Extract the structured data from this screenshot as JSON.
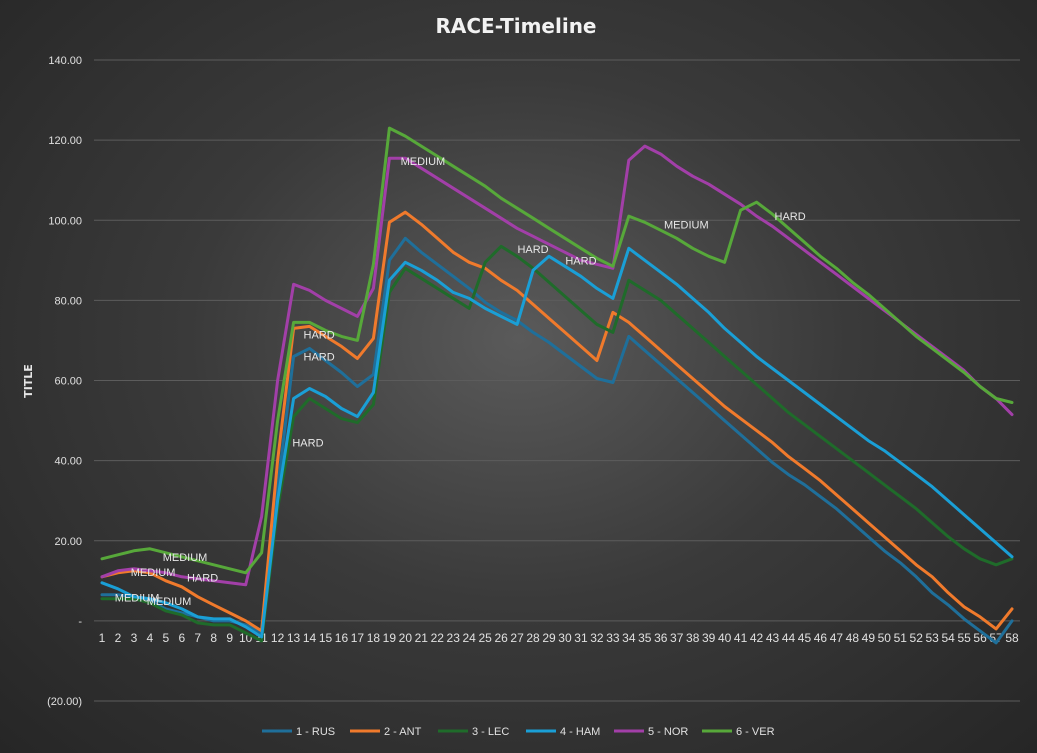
{
  "chart_data": {
    "type": "line",
    "title": "RACE-Timeline",
    "ylabel": "TITLE",
    "xlabel": "",
    "ylim": [
      -20,
      140
    ],
    "yticks": [
      {
        "value": 140,
        "label": "140.00"
      },
      {
        "value": 120,
        "label": "120.00"
      },
      {
        "value": 100,
        "label": "100.00"
      },
      {
        "value": 80,
        "label": "80.00"
      },
      {
        "value": 60,
        "label": "60.00"
      },
      {
        "value": 40,
        "label": "40.00"
      },
      {
        "value": 20,
        "label": "20.00"
      },
      {
        "value": 0,
        "label": "-"
      },
      {
        "value": -20,
        "label": "(20.00)"
      }
    ],
    "x": [
      1,
      2,
      3,
      4,
      5,
      6,
      7,
      8,
      9,
      10,
      11,
      12,
      13,
      14,
      15,
      16,
      17,
      18,
      19,
      20,
      21,
      22,
      23,
      24,
      25,
      26,
      27,
      28,
      29,
      30,
      31,
      32,
      33,
      34,
      35,
      36,
      37,
      38,
      39,
      40,
      41,
      42,
      43,
      44,
      45,
      46,
      47,
      48,
      49,
      50,
      51,
      52,
      53,
      54,
      55,
      56,
      57,
      58
    ],
    "grid": true,
    "legend_position": "bottom",
    "series": [
      {
        "name": "1 - RUS",
        "color": "#1f6f9a",
        "values": [
          6.5,
          6.5,
          6.0,
          5.0,
          3.0,
          2.0,
          1.0,
          0.0,
          0.0,
          -1.0,
          -3.0,
          33.0,
          66.0,
          68.0,
          65.0,
          62.0,
          58.5,
          61.5,
          90.0,
          95.5,
          92.0,
          89.0,
          86.0,
          83.0,
          79.5,
          77.0,
          75.0,
          72.0,
          69.5,
          66.5,
          63.5,
          60.5,
          59.5,
          71.0,
          67.5,
          64.0,
          60.5,
          57.0,
          53.5,
          50.0,
          46.5,
          43.0,
          39.5,
          36.5,
          34.0,
          31.0,
          28.0,
          24.5,
          21.0,
          17.5,
          14.5,
          11.0,
          7.0,
          4.0,
          0.5,
          -2.5,
          -5.5,
          0.0
        ]
      },
      {
        "name": "2 - ANT",
        "color": "#f07a2c",
        "values": [
          11.0,
          12.0,
          12.5,
          12.0,
          10.0,
          8.5,
          6.0,
          4.0,
          2.0,
          0.0,
          -2.5,
          40.0,
          73.0,
          73.5,
          71.0,
          68.5,
          65.5,
          70.5,
          99.5,
          102.0,
          99.0,
          95.5,
          92.0,
          89.5,
          88.0,
          85.0,
          82.5,
          79.0,
          75.5,
          72.0,
          68.5,
          65.0,
          77.0,
          74.5,
          71.0,
          67.5,
          64.0,
          60.5,
          57.0,
          53.5,
          50.5,
          47.5,
          44.5,
          41.0,
          38.0,
          35.0,
          31.5,
          28.0,
          24.5,
          21.0,
          17.5,
          14.0,
          11.0,
          7.0,
          3.5,
          1.0,
          -2.0,
          3.0
        ]
      },
      {
        "name": "3 - LEC",
        "color": "#1f6b2a",
        "values": [
          5.5,
          5.5,
          5.5,
          4.5,
          2.5,
          1.5,
          -0.5,
          -1.0,
          -1.0,
          -3.0,
          -5.0,
          28.0,
          51.0,
          55.5,
          53.0,
          50.5,
          49.5,
          54.0,
          82.0,
          88.0,
          85.5,
          83.0,
          80.5,
          78.0,
          89.5,
          93.5,
          91.0,
          88.0,
          84.5,
          81.0,
          77.5,
          74.0,
          72.0,
          85.0,
          82.5,
          80.0,
          76.5,
          73.0,
          69.5,
          66.0,
          62.5,
          59.0,
          55.5,
          52.0,
          49.0,
          46.0,
          43.0,
          40.0,
          37.0,
          34.0,
          31.0,
          28.0,
          24.5,
          21.0,
          18.0,
          15.5,
          14.0,
          15.5
        ]
      },
      {
        "name": "4 - HAM",
        "color": "#1a9fd6",
        "values": [
          9.5,
          8.0,
          6.0,
          5.5,
          4.5,
          3.0,
          1.0,
          0.5,
          0.5,
          -1.5,
          -4.0,
          30.0,
          55.5,
          58.0,
          56.0,
          53.0,
          51.0,
          57.0,
          85.0,
          89.5,
          87.5,
          85.0,
          82.0,
          80.5,
          78.0,
          76.0,
          74.0,
          87.5,
          91.0,
          88.5,
          86.0,
          83.0,
          80.5,
          93.0,
          90.0,
          87.0,
          84.0,
          80.5,
          77.0,
          73.0,
          69.5,
          66.0,
          63.0,
          60.0,
          57.0,
          54.0,
          51.0,
          48.0,
          45.0,
          42.5,
          39.5,
          36.5,
          33.5,
          30.0,
          26.5,
          23.0,
          19.5,
          16.0
        ]
      },
      {
        "name": "5 - NOR",
        "color": "#a23fa8",
        "values": [
          11.0,
          12.5,
          13.0,
          12.5,
          12.0,
          11.0,
          10.5,
          10.0,
          9.5,
          9.0,
          26.0,
          60.0,
          84.0,
          82.5,
          80.0,
          78.0,
          76.0,
          83.0,
          115.5,
          115.5,
          113.0,
          110.5,
          108.0,
          105.5,
          103.0,
          100.5,
          98.0,
          96.0,
          94.0,
          92.0,
          90.0,
          89.0,
          88.0,
          115.0,
          118.5,
          116.5,
          113.5,
          111.0,
          109.0,
          106.5,
          104.0,
          101.0,
          98.5,
          95.5,
          92.5,
          89.5,
          86.5,
          83.5,
          80.5,
          77.5,
          74.5,
          71.5,
          68.5,
          65.5,
          62.5,
          58.5,
          55.5,
          51.5
        ]
      },
      {
        "name": "6 - VER",
        "color": "#57a83a",
        "values": [
          15.5,
          16.5,
          17.5,
          18.0,
          17.0,
          16.0,
          15.0,
          14.0,
          13.0,
          12.0,
          17.0,
          50.0,
          74.5,
          74.5,
          72.5,
          71.0,
          70.0,
          89.0,
          123.0,
          121.0,
          118.5,
          116.0,
          113.5,
          111.0,
          108.5,
          105.5,
          103.0,
          100.5,
          98.0,
          95.5,
          93.0,
          90.5,
          88.5,
          101.0,
          99.5,
          97.5,
          95.5,
          93.0,
          91.0,
          89.5,
          102.5,
          104.5,
          101.5,
          98.0,
          94.5,
          91.0,
          88.0,
          84.5,
          81.5,
          78.0,
          74.5,
          71.0,
          68.0,
          65.0,
          62.0,
          58.5,
          55.5,
          54.5
        ]
      }
    ],
    "annotations": [
      {
        "text": "MEDIUM",
        "x": 4.2,
        "y": 12.2
      },
      {
        "text": "MEDIUM",
        "x": 6.2,
        "y": 16.0
      },
      {
        "text": "HARD",
        "x": 7.3,
        "y": 10.8
      },
      {
        "text": "MEDIUM",
        "x": 3.2,
        "y": 5.8
      },
      {
        "text": "MEDIUM",
        "x": 5.2,
        "y": 5.0
      },
      {
        "text": "HARD",
        "x": 14.6,
        "y": 71.5
      },
      {
        "text": "HARD",
        "x": 14.6,
        "y": 66.0
      },
      {
        "text": "HARD",
        "x": 13.9,
        "y": 44.5
      },
      {
        "text": "MEDIUM",
        "x": 21.1,
        "y": 114.8
      },
      {
        "text": "HARD",
        "x": 28.0,
        "y": 92.8
      },
      {
        "text": "HARD",
        "x": 31.0,
        "y": 90.0
      },
      {
        "text": "MEDIUM",
        "x": 37.6,
        "y": 99.0
      },
      {
        "text": "HARD",
        "x": 44.1,
        "y": 101.0
      }
    ]
  }
}
